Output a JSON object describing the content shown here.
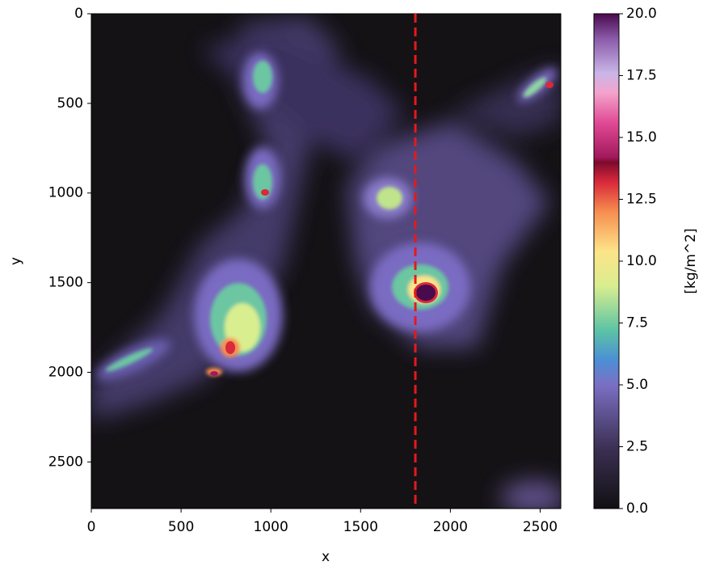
{
  "chart_data": {
    "type": "heatmap",
    "xlabel": "x",
    "ylabel": "y",
    "colorbar_label": "[kg/m^2]",
    "xlim": [
      0,
      2615
    ],
    "ylim": [
      0,
      2760
    ],
    "y_inverted": true,
    "xticks": [
      0,
      500,
      1000,
      1500,
      2000,
      2500
    ],
    "yticks": [
      0,
      500,
      1000,
      1500,
      2000,
      2500
    ],
    "clim": [
      0,
      20
    ],
    "cticks": [
      {
        "value": 0,
        "label": "0.0"
      },
      2.5,
      {
        "value": 5,
        "label": "5.0"
      },
      7.5,
      {
        "value": 10,
        "label": "10.0"
      },
      12.5,
      {
        "value": 15,
        "label": "15.0"
      },
      17.5,
      {
        "value": 20,
        "label": "20.0"
      }
    ],
    "vline_x": 1805,
    "vline_color": "#e41a1c"
  }
}
